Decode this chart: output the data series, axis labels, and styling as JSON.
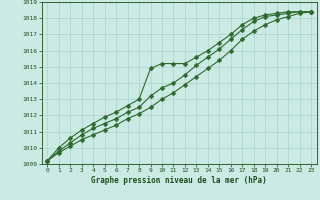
{
  "title": "Graphe pression niveau de la mer (hPa)",
  "x": [
    0,
    1,
    2,
    3,
    4,
    5,
    6,
    7,
    8,
    9,
    10,
    11,
    12,
    13,
    14,
    15,
    16,
    17,
    18,
    19,
    20,
    21,
    22,
    23
  ],
  "line1": [
    1009.2,
    1010.0,
    1010.6,
    1011.1,
    1011.5,
    1011.9,
    1012.2,
    1012.6,
    1013.0,
    1014.9,
    1015.2,
    1015.2,
    1015.2,
    1015.6,
    1016.0,
    1016.5,
    1017.0,
    1017.6,
    1018.0,
    1018.2,
    1018.3,
    1018.4,
    1018.4,
    1018.4
  ],
  "line2": [
    1009.2,
    1009.8,
    1010.3,
    1010.8,
    1011.2,
    1011.5,
    1011.8,
    1012.2,
    1012.5,
    1013.2,
    1013.7,
    1014.0,
    1014.5,
    1015.1,
    1015.6,
    1016.1,
    1016.7,
    1017.3,
    1017.8,
    1018.1,
    1018.2,
    1018.3,
    1018.4,
    1018.4
  ],
  "line3": [
    1009.2,
    1009.7,
    1010.1,
    1010.5,
    1010.8,
    1011.1,
    1011.4,
    1011.8,
    1012.1,
    1012.5,
    1013.0,
    1013.4,
    1013.9,
    1014.4,
    1014.9,
    1015.4,
    1016.0,
    1016.7,
    1017.2,
    1017.6,
    1017.9,
    1018.1,
    1018.3,
    1018.4
  ],
  "line_color": "#2d6a2d",
  "bg_color": "#cceae4",
  "grid_color": "#aad4cc",
  "text_color": "#1a4d1a",
  "ylim": [
    1009,
    1019
  ],
  "yticks": [
    1009,
    1010,
    1011,
    1012,
    1013,
    1014,
    1015,
    1016,
    1017,
    1018,
    1019
  ],
  "xlim": [
    -0.5,
    23.5
  ],
  "xticks": [
    0,
    1,
    2,
    3,
    4,
    5,
    6,
    7,
    8,
    9,
    10,
    11,
    12,
    13,
    14,
    15,
    16,
    17,
    18,
    19,
    20,
    21,
    22,
    23
  ],
  "marker": "D",
  "markersize": 2.5,
  "linewidth": 0.8
}
